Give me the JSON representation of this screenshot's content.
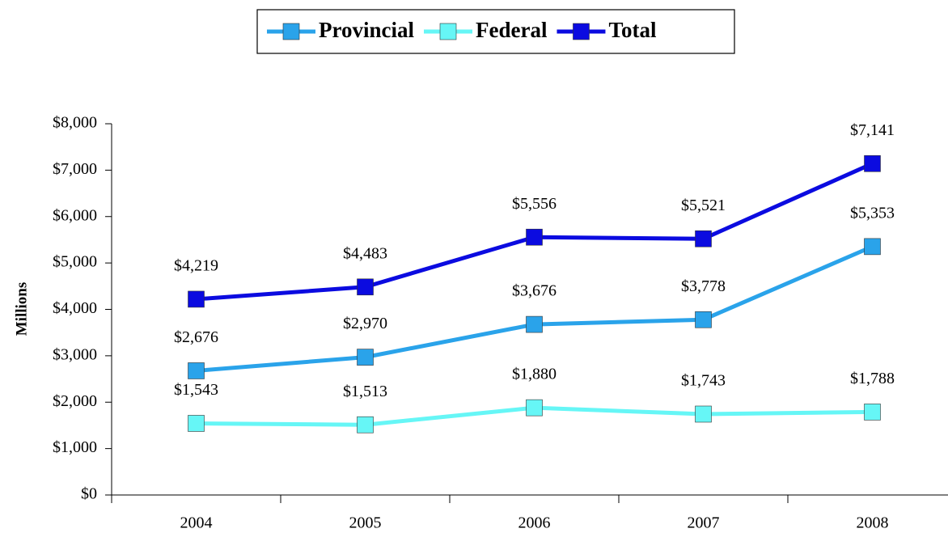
{
  "chart_data": {
    "type": "line",
    "y_label": "Millions",
    "categories": [
      "2004",
      "2005",
      "2006",
      "2007",
      "2008"
    ],
    "series": [
      {
        "name": "Provincial",
        "color": "#2aa3ea",
        "values": [
          2676,
          2970,
          3676,
          3778,
          5353
        ],
        "value_labels": [
          "$2,676",
          "$2,970",
          "$3,676",
          "$3,778",
          "$5,353"
        ]
      },
      {
        "name": "Federal",
        "color": "#66f6f6",
        "values": [
          1543,
          1513,
          1880,
          1743,
          1788
        ],
        "value_labels": [
          "$1,543",
          "$1,513",
          "$1,880",
          "$1,743",
          "$1,788"
        ]
      },
      {
        "name": "Total",
        "color": "#0b0be0",
        "values": [
          4219,
          4483,
          5556,
          5521,
          7141
        ],
        "value_labels": [
          "$4,219",
          "$4,483",
          "$5,556",
          "$5,521",
          "$7,141"
        ]
      }
    ],
    "ylim": [
      0,
      8000
    ],
    "yticks": [
      {
        "value": 0,
        "label": "$0"
      },
      {
        "value": 1000,
        "label": "$1,000"
      },
      {
        "value": 2000,
        "label": "$2,000"
      },
      {
        "value": 3000,
        "label": "$3,000"
      },
      {
        "value": 4000,
        "label": "$4,000"
      },
      {
        "value": 5000,
        "label": "$5,000"
      },
      {
        "value": 6000,
        "label": "$6,000"
      },
      {
        "value": 7000,
        "label": "$7,000"
      },
      {
        "value": 8000,
        "label": "$8,000"
      }
    ],
    "grid": false,
    "legend": "top"
  }
}
